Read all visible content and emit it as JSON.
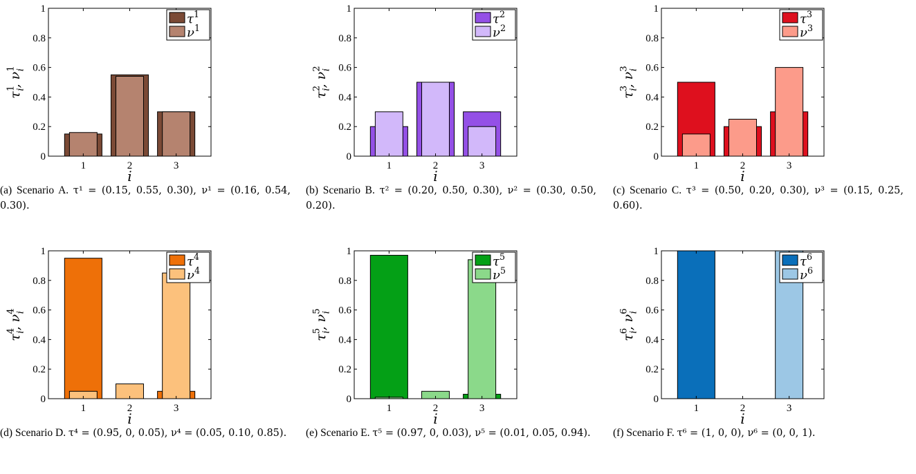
{
  "chart_data": [
    {
      "type": "bar",
      "categories": [
        "1",
        "2",
        "3"
      ],
      "xlabel": "i",
      "ylabel": "τ_i^1, ν_i^1",
      "ylim": [
        0,
        1
      ],
      "yticks": [
        "0",
        "0.2",
        "0.4",
        "0.6",
        "0.8",
        "1"
      ],
      "legend_placement": "top-right",
      "series": [
        {
          "name": "τ^1",
          "color": "#7b4a36",
          "values": [
            0.15,
            0.55,
            0.3
          ]
        },
        {
          "name": "ν^1",
          "color": "#b5836f",
          "values": [
            0.16,
            0.54,
            0.3
          ]
        }
      ],
      "caption": {
        "label": "(a) Scenario A.",
        "text": "τ¹ = (0.15, 0.55, 0.30), ν¹ = (0.16, 0.54, 0.30)."
      }
    },
    {
      "type": "bar",
      "categories": [
        "1",
        "2",
        "3"
      ],
      "xlabel": "i",
      "ylabel": "τ_i^2, ν_i^2",
      "ylim": [
        0,
        1
      ],
      "yticks": [
        "0",
        "0.2",
        "0.4",
        "0.6",
        "0.8",
        "1"
      ],
      "legend_placement": "top-right",
      "series": [
        {
          "name": "τ^2",
          "color": "#9450e6",
          "values": [
            0.2,
            0.5,
            0.3
          ]
        },
        {
          "name": "ν^2",
          "color": "#d2b8fa",
          "values": [
            0.3,
            0.5,
            0.2
          ]
        }
      ],
      "caption": {
        "label": "(b) Scenario B.",
        "text": "τ² = (0.20, 0.50, 0.30), ν² = (0.30, 0.50, 0.20)."
      }
    },
    {
      "type": "bar",
      "categories": [
        "1",
        "2",
        "3"
      ],
      "xlabel": "i",
      "ylabel": "τ_i^3, ν_i^3",
      "ylim": [
        0,
        1
      ],
      "yticks": [
        "0",
        "0.2",
        "0.4",
        "0.6",
        "0.8",
        "1"
      ],
      "legend_placement": "top-right",
      "series": [
        {
          "name": "τ^3",
          "color": "#de101e",
          "values": [
            0.5,
            0.2,
            0.3
          ]
        },
        {
          "name": "ν^3",
          "color": "#fc9b8a",
          "values": [
            0.15,
            0.25,
            0.6
          ]
        }
      ],
      "caption": {
        "label": "(c) Scenario C.",
        "text": "τ³ = (0.50, 0.20, 0.30), ν³ = (0.15, 0.25, 0.60)."
      }
    },
    {
      "type": "bar",
      "categories": [
        "1",
        "2",
        "3"
      ],
      "xlabel": "i",
      "ylabel": "τ_i^4, ν_i^4",
      "ylim": [
        0,
        1
      ],
      "yticks": [
        "0",
        "0.2",
        "0.4",
        "0.6",
        "0.8",
        "1"
      ],
      "legend_placement": "top-right",
      "series": [
        {
          "name": "τ^4",
          "color": "#ee7008",
          "values": [
            0.95,
            0,
            0.05
          ]
        },
        {
          "name": "ν^4",
          "color": "#fcc17c",
          "values": [
            0.05,
            0.1,
            0.85
          ]
        }
      ],
      "caption": {
        "label": "(d) Scenario D.",
        "text": "τ⁴ = (0.95, 0, 0.05), ν⁴ = (0.05, 0.10, 0.85)."
      }
    },
    {
      "type": "bar",
      "categories": [
        "1",
        "2",
        "3"
      ],
      "xlabel": "i",
      "ylabel": "τ_i^5, ν_i^5",
      "ylim": [
        0,
        1
      ],
      "yticks": [
        "0",
        "0.2",
        "0.4",
        "0.6",
        "0.8",
        "1"
      ],
      "legend_placement": "top-right",
      "series": [
        {
          "name": "τ^5",
          "color": "#04a016",
          "values": [
            0.97,
            0,
            0.03
          ]
        },
        {
          "name": "ν^5",
          "color": "#8bd98a",
          "values": [
            0.01,
            0.05,
            0.94
          ]
        }
      ],
      "caption": {
        "label": "(e) Scenario E.",
        "text": "τ⁵ = (0.97, 0, 0.03), ν⁵ = (0.01, 0.05, 0.94)."
      }
    },
    {
      "type": "bar",
      "categories": [
        "1",
        "2",
        "3"
      ],
      "xlabel": "i",
      "ylabel": "τ_i^6, ν_i^6",
      "ylim": [
        0,
        1
      ],
      "yticks": [
        "0",
        "0.2",
        "0.4",
        "0.6",
        "0.8",
        "1"
      ],
      "legend_placement": "top-right",
      "series": [
        {
          "name": "τ^6",
          "color": "#0a6fba",
          "values": [
            1,
            0,
            0
          ]
        },
        {
          "name": "ν^6",
          "color": "#9cc7e5",
          "values": [
            0,
            0,
            1
          ]
        }
      ],
      "caption": {
        "label": "(f) Scenario F.",
        "text": "τ⁶ = (1, 0, 0), ν⁶ = (0, 0, 1)."
      }
    }
  ]
}
